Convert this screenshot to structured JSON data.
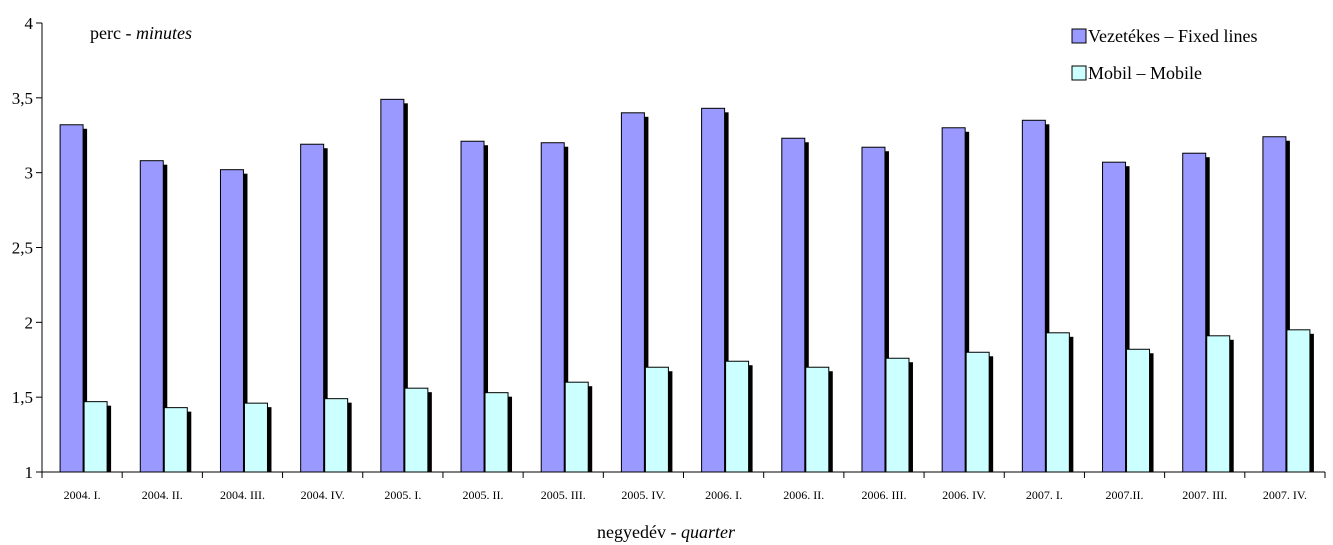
{
  "chart_data": {
    "type": "bar",
    "title": "",
    "unit_label": {
      "plain": "perc - ",
      "italic": "minutes"
    },
    "xlabel": {
      "plain": "negyedév - ",
      "italic": "quarter"
    },
    "ylabel": "",
    "ylim": [
      1,
      4
    ],
    "yticks": [
      1,
      1.5,
      2,
      2.5,
      3,
      3.5,
      4
    ],
    "ytick_labels": [
      "1",
      "1,5",
      "2",
      "2,5",
      "3",
      "3,5",
      "4"
    ],
    "grid": false,
    "legend_position": "top-right",
    "categories": [
      "2004. I.",
      "2004. II.",
      "2004. III.",
      "2004. IV.",
      "2005. I.",
      "2005. II.",
      "2005. III.",
      "2005. IV.",
      "2006. I.",
      "2006. II.",
      "2006. III.",
      "2006. IV.",
      "2007. I.",
      "2007.II.",
      "2007. III.",
      "2007. IV."
    ],
    "series": [
      {
        "name": "Vezetékes – Fixed lines",
        "color": "#9999ff",
        "values": [
          3.32,
          3.08,
          3.02,
          3.19,
          3.49,
          3.21,
          3.2,
          3.4,
          3.43,
          3.23,
          3.17,
          3.3,
          3.35,
          3.07,
          3.13,
          3.24
        ]
      },
      {
        "name": "Mobil – Mobile",
        "color": "#ccffff",
        "values": [
          1.47,
          1.43,
          1.46,
          1.49,
          1.56,
          1.53,
          1.6,
          1.7,
          1.74,
          1.7,
          1.76,
          1.8,
          1.93,
          1.82,
          1.91,
          1.95
        ]
      }
    ]
  }
}
